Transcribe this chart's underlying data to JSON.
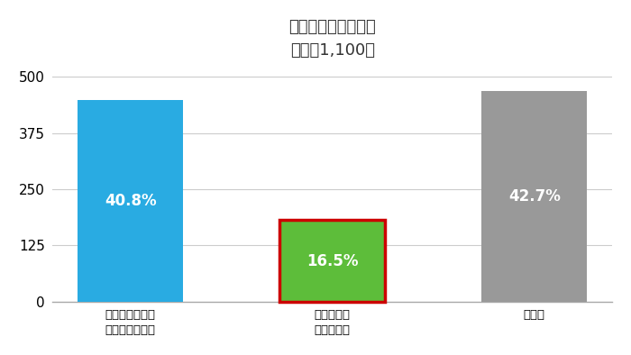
{
  "title_line1": "受講しなかった理由",
  "title_line2": "人数：1,100名",
  "categories": [
    "本人や保護者が\n希望しなかった",
    "担当教員の\n確保できず",
    "その他"
  ],
  "values": [
    448.8,
    181.5,
    469.7
  ],
  "percentages": [
    "40.8%",
    "16.5%",
    "42.7%"
  ],
  "bar_colors": [
    "#29ABE2",
    "#5DBD3A",
    "#999999"
  ],
  "red_border_index": 1,
  "red_border_color": "#CC0000",
  "red_border_linewidth": 2.5,
  "ylabel_ticks": [
    0,
    125,
    250,
    375,
    500
  ],
  "ylim_max": 515,
  "background_color": "#ffffff",
  "title_fontsize": 13,
  "subtitle_fontsize": 12,
  "ytick_fontsize": 11,
  "xtick_fontsize": 9.5,
  "pct_fontsize": 12,
  "pct_color": "#ffffff",
  "bar_width": 0.52,
  "grid_color": "#cccccc",
  "grid_linewidth": 0.8,
  "spine_color": "#aaaaaa",
  "text_color": "#333333"
}
